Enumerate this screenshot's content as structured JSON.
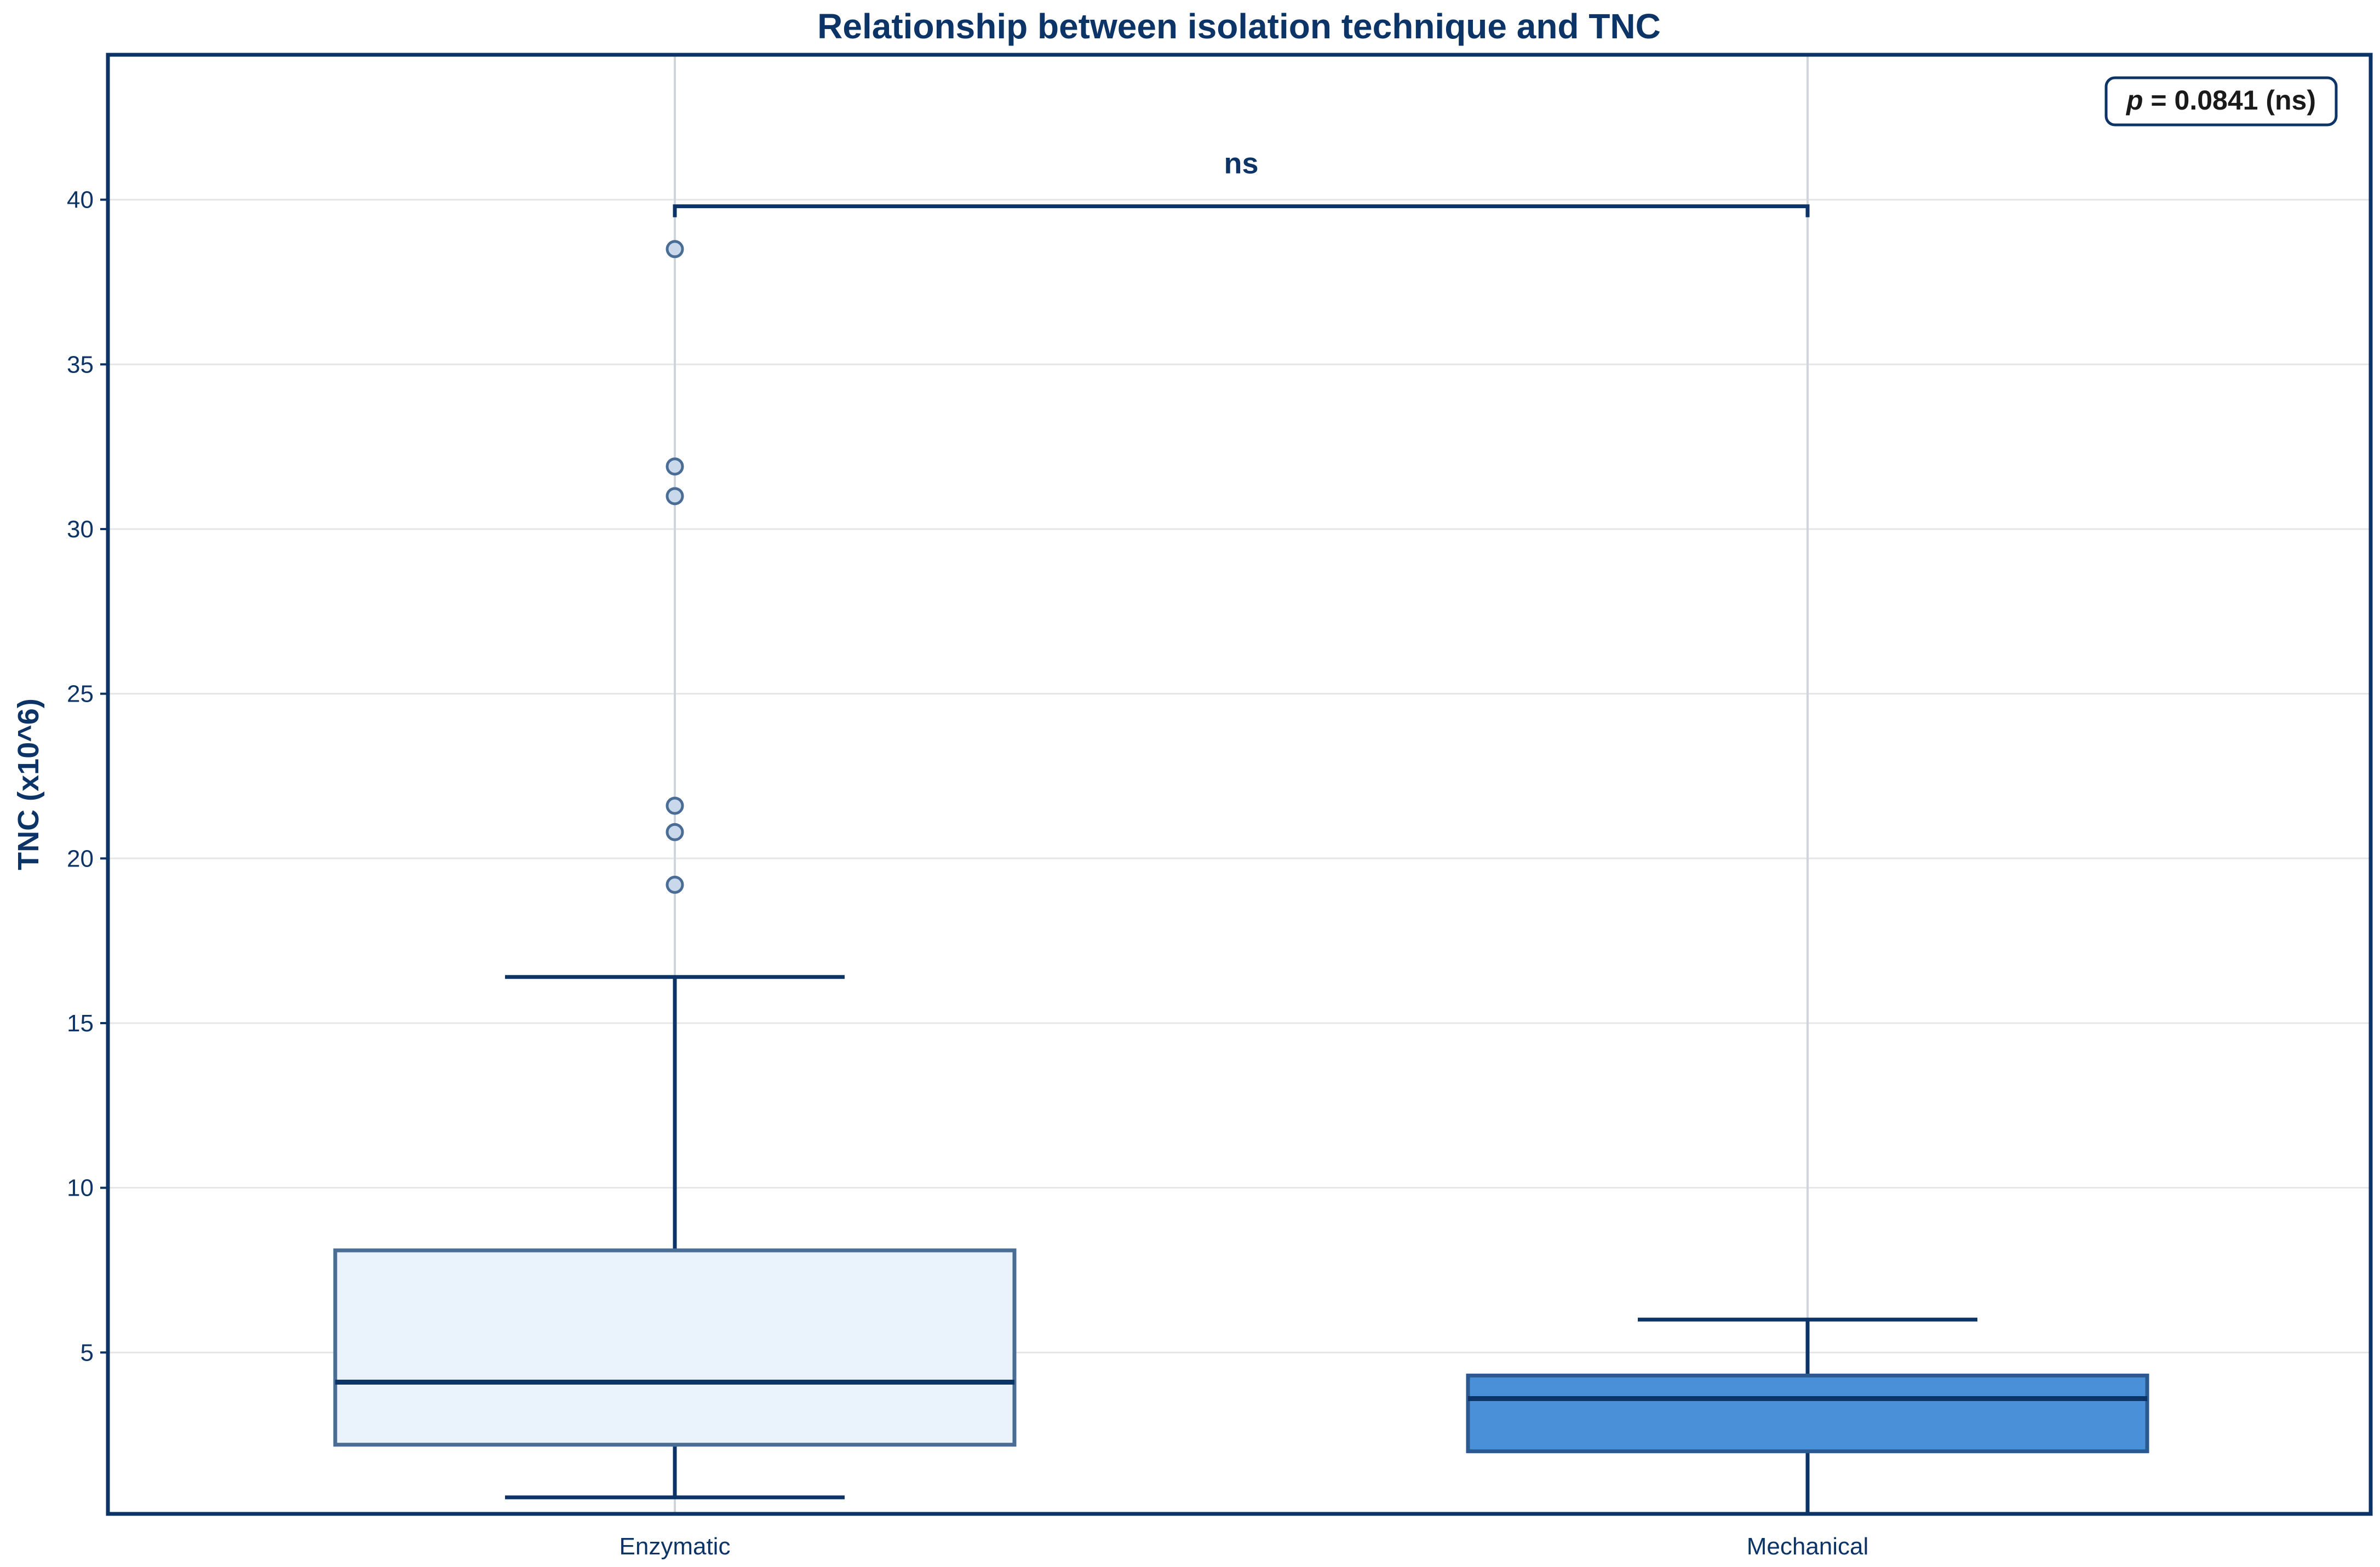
{
  "chart_data": {
    "type": "box",
    "title": "Relationship between isolation technique and TNC",
    "xlabel": "",
    "ylabel": "TNC (x10^6)",
    "ylim": [
      0.1,
      44.4
    ],
    "yticks": [
      5,
      10,
      15,
      20,
      25,
      30,
      35,
      40
    ],
    "grid": true,
    "categories": [
      "Enzymatic",
      "Mechanical"
    ],
    "boxes": [
      {
        "category": "Enzymatic",
        "whisker_low": 0.6,
        "q1": 2.2,
        "median": 4.1,
        "q3": 8.1,
        "whisker_high": 16.4,
        "outliers": [
          19.2,
          20.8,
          21.6,
          31.0,
          31.9,
          38.5
        ],
        "fill": "#eaf3fc",
        "edge": "#4a6d96"
      },
      {
        "category": "Mechanical",
        "whisker_low": 0.1,
        "q1": 2.0,
        "median": 3.6,
        "q3": 4.3,
        "whisker_high": 6.0,
        "outliers": [],
        "fill": "#4a90d9",
        "edge": "#2a5a8f"
      }
    ],
    "significance": {
      "bracket_y": 39.8,
      "label": "ns",
      "p_label_prefix": "p",
      "p_label_rest": " = 0.0841 (ns)"
    },
    "colors": {
      "dark": "#0d3466",
      "grid": "#e6e6e6",
      "outlier_edge": "#4a6d96",
      "outlier_fill": "#c9d8ea"
    }
  }
}
